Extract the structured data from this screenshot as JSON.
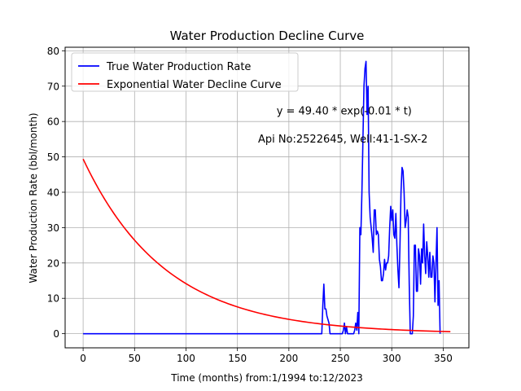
{
  "chart_data": {
    "type": "line",
    "title": "Water Production Decline Curve",
    "xlabel": "Time (months) from:1/1994 to:12/2023",
    "ylabel": "Water Production Rate (bbl/month)",
    "xlim": [
      -17.5,
      375
    ],
    "ylim": [
      -4,
      81
    ],
    "xticks": [
      0,
      50,
      100,
      150,
      200,
      250,
      300,
      350
    ],
    "yticks": [
      0,
      10,
      20,
      30,
      40,
      50,
      60,
      70,
      80
    ],
    "grid": true,
    "legend_position": "top-left",
    "annotations": [
      {
        "text": "y = 49.40 * exp(-0.01 * t)",
        "x": 188,
        "y": 62
      },
      {
        "text": "Api No:2522645, Well:41-1-SX-2",
        "x": 170,
        "y": 54
      }
    ],
    "series": [
      {
        "name": "True Water Production Rate",
        "color": "#0000ff",
        "points": [
          [
            0,
            0
          ],
          [
            232,
            0
          ],
          [
            233,
            8
          ],
          [
            234,
            14
          ],
          [
            235,
            7
          ],
          [
            236,
            7
          ],
          [
            237,
            5
          ],
          [
            238,
            4
          ],
          [
            239,
            3
          ],
          [
            240,
            0
          ],
          [
            252,
            0
          ],
          [
            253,
            1
          ],
          [
            254,
            3
          ],
          [
            255,
            0
          ],
          [
            256,
            2
          ],
          [
            257,
            0
          ],
          [
            263,
            0
          ],
          [
            264,
            1
          ],
          [
            265,
            3
          ],
          [
            266,
            1
          ],
          [
            267,
            6
          ],
          [
            268,
            0
          ],
          [
            269,
            30
          ],
          [
            270,
            28
          ],
          [
            271,
            40
          ],
          [
            272,
            55
          ],
          [
            273,
            70
          ],
          [
            274,
            75
          ],
          [
            275,
            77
          ],
          [
            276,
            62
          ],
          [
            277,
            70
          ],
          [
            278,
            40
          ],
          [
            279,
            33
          ],
          [
            280,
            30
          ],
          [
            281,
            27
          ],
          [
            282,
            23
          ],
          [
            283,
            35
          ],
          [
            284,
            35
          ],
          [
            285,
            28
          ],
          [
            286,
            29
          ],
          [
            287,
            28
          ],
          [
            288,
            21
          ],
          [
            289,
            19
          ],
          [
            290,
            15
          ],
          [
            291,
            15
          ],
          [
            292,
            17
          ],
          [
            293,
            21
          ],
          [
            294,
            18
          ],
          [
            295,
            20
          ],
          [
            296,
            20
          ],
          [
            297,
            22
          ],
          [
            298,
            30
          ],
          [
            299,
            36
          ],
          [
            300,
            32
          ],
          [
            301,
            35
          ],
          [
            302,
            28
          ],
          [
            303,
            27
          ],
          [
            304,
            34
          ],
          [
            305,
            25
          ],
          [
            306,
            18
          ],
          [
            307,
            13
          ],
          [
            308,
            25
          ],
          [
            309,
            40
          ],
          [
            310,
            47
          ],
          [
            311,
            46
          ],
          [
            312,
            40
          ],
          [
            313,
            30
          ],
          [
            314,
            32
          ],
          [
            315,
            35
          ],
          [
            316,
            33
          ],
          [
            317,
            14
          ],
          [
            318,
            0
          ],
          [
            319,
            0
          ],
          [
            320,
            0
          ],
          [
            321,
            5
          ],
          [
            322,
            25
          ],
          [
            323,
            25
          ],
          [
            324,
            12
          ],
          [
            325,
            12
          ],
          [
            326,
            24
          ],
          [
            327,
            22
          ],
          [
            328,
            14
          ],
          [
            329,
            24
          ],
          [
            330,
            20
          ],
          [
            331,
            31
          ],
          [
            332,
            22
          ],
          [
            333,
            17
          ],
          [
            334,
            26
          ],
          [
            335,
            22
          ],
          [
            336,
            16
          ],
          [
            337,
            23
          ],
          [
            338,
            16
          ],
          [
            339,
            16
          ],
          [
            340,
            22
          ],
          [
            341,
            20
          ],
          [
            342,
            9
          ],
          [
            343,
            20
          ],
          [
            344,
            30
          ],
          [
            345,
            8
          ],
          [
            346,
            15
          ],
          [
            347,
            0
          ]
        ]
      },
      {
        "name": "Exponential Water Decline Curve",
        "color": "#ff0000",
        "model": {
          "a": 49.4,
          "b": 0.0125,
          "t_start": 0,
          "t_end": 357
        }
      }
    ]
  }
}
